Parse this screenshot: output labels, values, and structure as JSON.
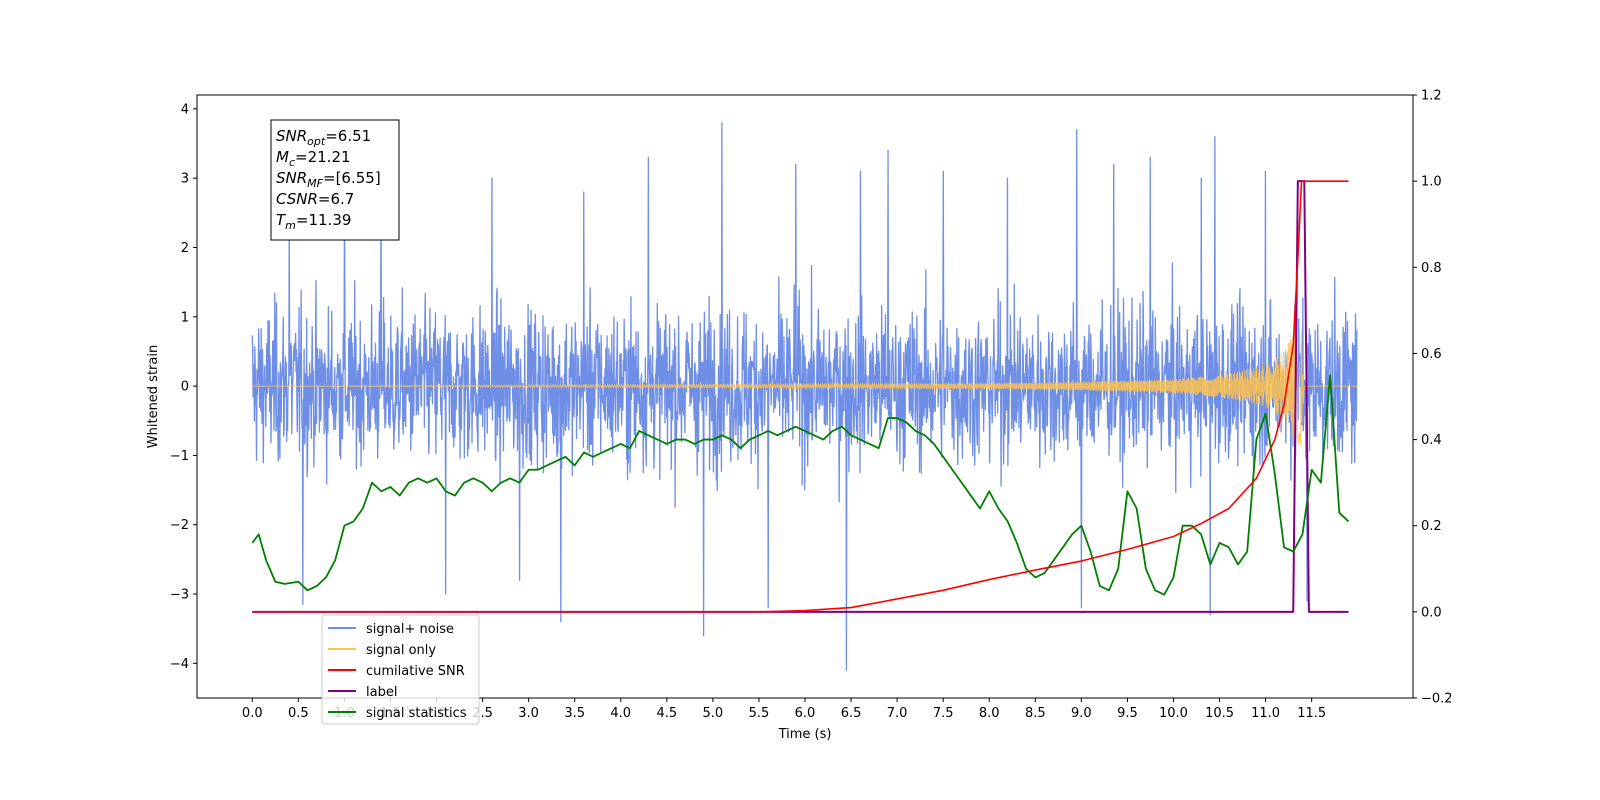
{
  "chart_data": {
    "type": "line",
    "xlabel": "Time (s)",
    "ylabel": "Whitened strain",
    "xlim": [
      -0.6,
      12.6
    ],
    "ylim": [
      -4.5,
      4.2
    ],
    "y2lim": [
      -0.2,
      1.2
    ],
    "x_ticks": [
      "0.0",
      "0.5",
      "1.0",
      "1.5",
      "2.0",
      "2.5",
      "3.0",
      "3.5",
      "4.0",
      "4.5",
      "5.0",
      "5.5",
      "6.0",
      "6.5",
      "7.0",
      "7.5",
      "8.0",
      "8.5",
      "9.0",
      "9.5",
      "10.0",
      "10.5",
      "11.0",
      "11.5"
    ],
    "y_ticks": [
      "4",
      "3",
      "2",
      "1",
      "0",
      "−1",
      "−2",
      "−3",
      "−4"
    ],
    "y2_ticks": [
      "1.2",
      "1.0",
      "0.8",
      "0.6",
      "0.4",
      "0.2",
      "0.0",
      "−0.2"
    ],
    "legend_position": "lower-left",
    "info_box": {
      "lines": [
        {
          "main": "SNR",
          "sub": "opt",
          "rest": "=6.51"
        },
        {
          "main": "M",
          "sub": "c",
          "rest": "=21.21"
        },
        {
          "main": "SNR",
          "sub": "MF",
          "rest": "=[6.55]"
        },
        {
          "main": "CSNR",
          "sub": "",
          "rest": "=6.7"
        },
        {
          "main": "T",
          "sub": "m",
          "rest": "=11.39"
        }
      ]
    },
    "series": [
      {
        "name": "signal+ noise",
        "color": "#6f8ee6",
        "axis": "left",
        "typical_amplitude": 1.0,
        "spikes": [
          {
            "x": 0.4,
            "y": 2.3
          },
          {
            "x": 0.55,
            "y": -3.15
          },
          {
            "x": 1.0,
            "y": 2.9
          },
          {
            "x": 1.4,
            "y": 2.8
          },
          {
            "x": 2.1,
            "y": -3.0
          },
          {
            "x": 2.6,
            "y": 3.0
          },
          {
            "x": 2.9,
            "y": -2.8
          },
          {
            "x": 3.35,
            "y": -3.4
          },
          {
            "x": 3.6,
            "y": 2.8
          },
          {
            "x": 4.3,
            "y": 3.3
          },
          {
            "x": 4.9,
            "y": -3.6
          },
          {
            "x": 5.1,
            "y": 3.8
          },
          {
            "x": 5.6,
            "y": -3.2
          },
          {
            "x": 5.9,
            "y": 3.2
          },
          {
            "x": 6.45,
            "y": -4.1
          },
          {
            "x": 6.6,
            "y": 3.1
          },
          {
            "x": 6.9,
            "y": 3.4
          },
          {
            "x": 7.5,
            "y": 3.1
          },
          {
            "x": 8.2,
            "y": 3.0
          },
          {
            "x": 8.95,
            "y": 3.7
          },
          {
            "x": 9.0,
            "y": -3.2
          },
          {
            "x": 9.35,
            "y": 3.2
          },
          {
            "x": 9.75,
            "y": 3.3
          },
          {
            "x": 10.3,
            "y": 3.0
          },
          {
            "x": 10.4,
            "y": -3.3
          },
          {
            "x": 10.45,
            "y": 3.6
          },
          {
            "x": 11.0,
            "y": 3.1
          },
          {
            "x": 11.45,
            "y": -3.1
          }
        ]
      },
      {
        "name": "signal only",
        "color": "#ffc24d",
        "axis": "left",
        "envelope": [
          [
            0.0,
            0.0
          ],
          [
            8.0,
            0.04
          ],
          [
            9.0,
            0.06
          ],
          [
            10.0,
            0.1
          ],
          [
            10.5,
            0.16
          ],
          [
            11.0,
            0.3
          ],
          [
            11.2,
            0.5
          ],
          [
            11.3,
            0.75
          ],
          [
            11.39,
            0.9
          ],
          [
            11.42,
            0.0
          ],
          [
            12.0,
            0.0
          ]
        ]
      },
      {
        "name": "cumilative SNR",
        "color": "#ff0000",
        "axis": "right",
        "x": [
          0.0,
          5.0,
          5.5,
          6.0,
          6.5,
          7.0,
          7.5,
          8.0,
          8.5,
          9.0,
          9.5,
          10.0,
          10.3,
          10.6,
          10.9,
          11.1,
          11.2,
          11.3,
          11.35,
          11.39,
          11.5,
          11.7,
          11.9
        ],
        "values": [
          0.0,
          0.0,
          0.0,
          0.003,
          0.01,
          0.03,
          0.05,
          0.075,
          0.097,
          0.118,
          0.145,
          0.175,
          0.205,
          0.24,
          0.31,
          0.4,
          0.48,
          0.62,
          0.82,
          1.0,
          1.0,
          1.0,
          1.0
        ]
      },
      {
        "name": "label",
        "color": "#800080",
        "axis": "right",
        "x": [
          0.0,
          11.3,
          11.35,
          11.42,
          11.47,
          11.9
        ],
        "values": [
          0.0,
          0.0,
          1.0,
          1.0,
          0.0,
          0.0
        ]
      },
      {
        "name": "signal statistics",
        "color": "#008000",
        "axis": "right",
        "x": [
          0.0,
          0.07,
          0.15,
          0.25,
          0.35,
          0.5,
          0.6,
          0.7,
          0.8,
          0.9,
          1.0,
          1.1,
          1.2,
          1.3,
          1.4,
          1.5,
          1.6,
          1.7,
          1.8,
          1.9,
          2.0,
          2.1,
          2.2,
          2.3,
          2.4,
          2.5,
          2.6,
          2.7,
          2.8,
          2.9,
          3.0,
          3.1,
          3.2,
          3.3,
          3.4,
          3.5,
          3.6,
          3.7,
          3.8,
          3.9,
          4.0,
          4.1,
          4.2,
          4.3,
          4.4,
          4.5,
          4.6,
          4.7,
          4.8,
          4.9,
          5.0,
          5.1,
          5.2,
          5.3,
          5.4,
          5.5,
          5.6,
          5.7,
          5.8,
          5.9,
          6.0,
          6.1,
          6.2,
          6.3,
          6.4,
          6.5,
          6.6,
          6.7,
          6.8,
          6.9,
          7.0,
          7.1,
          7.2,
          7.3,
          7.4,
          7.5,
          7.6,
          7.7,
          7.8,
          7.9,
          8.0,
          8.1,
          8.2,
          8.3,
          8.4,
          8.5,
          8.6,
          8.7,
          8.8,
          8.9,
          9.0,
          9.1,
          9.2,
          9.3,
          9.4,
          9.5,
          9.6,
          9.7,
          9.8,
          9.9,
          10.0,
          10.1,
          10.2,
          10.3,
          10.4,
          10.5,
          10.6,
          10.7,
          10.8,
          10.9,
          11.0,
          11.1,
          11.2,
          11.3,
          11.4,
          11.5,
          11.6,
          11.7,
          11.8,
          11.9
        ],
        "values": [
          0.16,
          0.18,
          0.12,
          0.07,
          0.065,
          0.07,
          0.05,
          0.06,
          0.08,
          0.12,
          0.2,
          0.21,
          0.24,
          0.3,
          0.28,
          0.29,
          0.27,
          0.3,
          0.31,
          0.3,
          0.31,
          0.28,
          0.27,
          0.3,
          0.31,
          0.3,
          0.28,
          0.3,
          0.31,
          0.3,
          0.33,
          0.33,
          0.34,
          0.35,
          0.36,
          0.34,
          0.37,
          0.36,
          0.37,
          0.38,
          0.39,
          0.38,
          0.42,
          0.41,
          0.4,
          0.39,
          0.4,
          0.4,
          0.39,
          0.4,
          0.4,
          0.41,
          0.4,
          0.38,
          0.4,
          0.41,
          0.42,
          0.41,
          0.42,
          0.43,
          0.42,
          0.41,
          0.4,
          0.42,
          0.43,
          0.41,
          0.4,
          0.39,
          0.38,
          0.45,
          0.45,
          0.44,
          0.42,
          0.41,
          0.39,
          0.36,
          0.33,
          0.3,
          0.27,
          0.24,
          0.28,
          0.24,
          0.21,
          0.16,
          0.1,
          0.08,
          0.09,
          0.12,
          0.15,
          0.18,
          0.2,
          0.14,
          0.06,
          0.05,
          0.1,
          0.28,
          0.24,
          0.1,
          0.05,
          0.04,
          0.08,
          0.2,
          0.2,
          0.18,
          0.11,
          0.16,
          0.15,
          0.11,
          0.14,
          0.4,
          0.46,
          0.32,
          0.15,
          0.14,
          0.18,
          0.33,
          0.3,
          0.55,
          0.23,
          0.21
        ]
      }
    ]
  }
}
